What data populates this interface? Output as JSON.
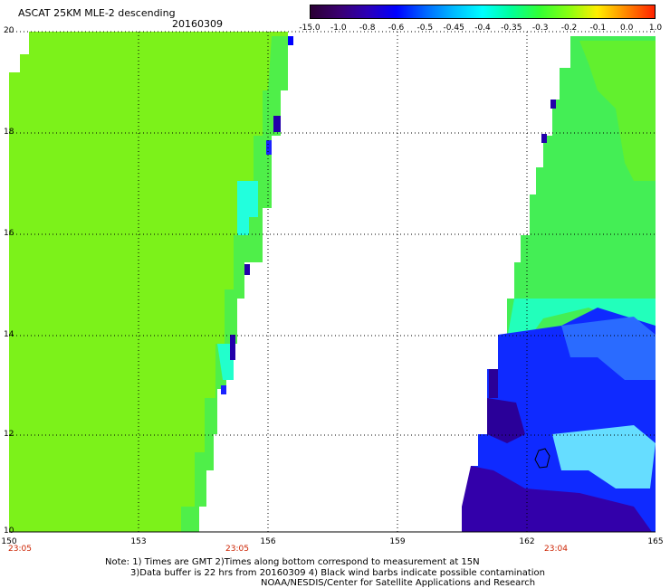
{
  "header": {
    "title": "ASCAT 25KM MLE-2 descending",
    "date": "20160309"
  },
  "colorbar": {
    "labels": [
      "-15.0",
      "-1.0",
      "-0.8",
      "-0.6",
      "-0.5",
      "-0.45",
      "-0.4",
      "-0.35",
      "-0.3",
      "-0.2",
      "-0.1",
      "0.0",
      "1.0"
    ],
    "stops": [
      "#2a0033",
      "#3a0070",
      "#2c00b8",
      "#0000ff",
      "#0066ff",
      "#00bbff",
      "#00ffff",
      "#00ff99",
      "#33ff33",
      "#88ff11",
      "#ffee00",
      "#ff8800",
      "#ff2200"
    ]
  },
  "map": {
    "lat_labels": [
      "20",
      "18",
      "16",
      "14",
      "12",
      "10"
    ],
    "lon_labels": [
      "150",
      "153",
      "156",
      "159",
      "162",
      "165"
    ],
    "time_labels": [
      "23:05",
      "23:05",
      "23:04"
    ]
  },
  "footer": {
    "note_line1": "Note: 1) Times are GMT 2)Times along bottom correspond to measurement at 15N",
    "note_line2": "3)Data buffer is 22 hrs from 20160309 4) Black wind barbs indicate possible contamination",
    "credit": "NOAA/NESDIS/Center for Satellite Applications and Research"
  }
}
